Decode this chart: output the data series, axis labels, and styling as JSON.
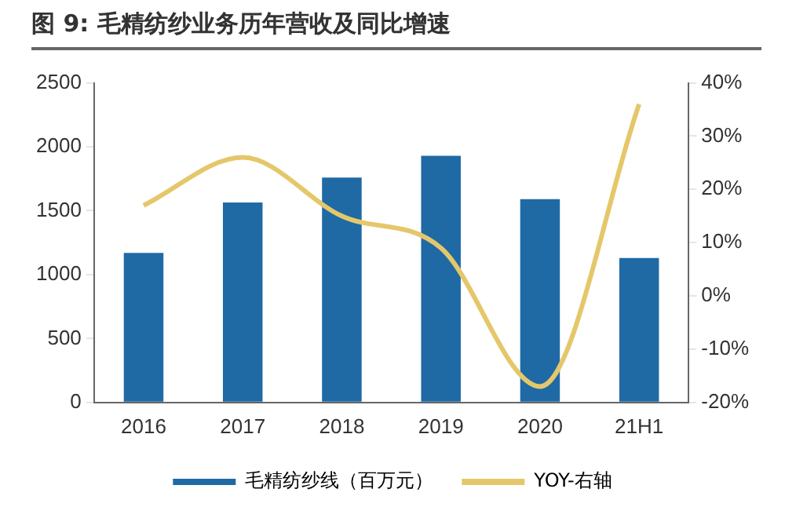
{
  "chart_data": {
    "type": "bar",
    "title": "图 9: 毛精纺纱业务历年营收及同比增速",
    "categories": [
      "2016",
      "2017",
      "2018",
      "2019",
      "2020",
      "21H1"
    ],
    "series": [
      {
        "name": "毛精纺纱线（百万元）",
        "color": "#1f6aa5",
        "values": [
          1170,
          1565,
          1760,
          1930,
          1590,
          1130
        ]
      },
      {
        "name": "YOY-右轴",
        "type": "line",
        "axis": "y2",
        "color": "#e5c76b",
        "values": [
          17,
          26,
          15,
          9,
          -17,
          36
        ]
      }
    ],
    "ylim": [
      0,
      2500
    ],
    "yticks": [
      0,
      500,
      1000,
      1500,
      2000,
      2500
    ],
    "y2lim": [
      -20,
      40
    ],
    "y2ticks": [
      {
        "value": -20,
        "label": "-20%"
      },
      {
        "value": -10,
        "label": "-10%"
      },
      {
        "value": 0,
        "label": "0%"
      },
      {
        "value": 10,
        "label": "10%"
      },
      {
        "value": 20,
        "label": "20%"
      },
      {
        "value": 30,
        "label": "30%"
      },
      {
        "value": 40,
        "label": "40%"
      }
    ],
    "grid": false,
    "legend": "bottom",
    "marker": "none"
  }
}
